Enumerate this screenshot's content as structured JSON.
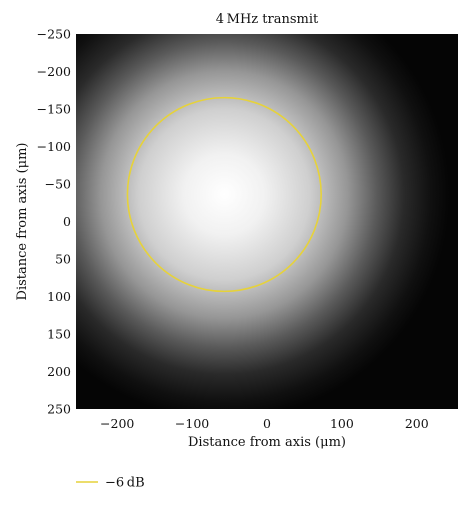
{
  "chart_data": {
    "type": "heatmap",
    "title": "4 MHz transmit",
    "xlabel": "Distance from axis (μm)",
    "ylabel": "Distance from axis (μm)",
    "xlim": [
      -255,
      255
    ],
    "ylim": [
      -250,
      250
    ],
    "y_inverted": true,
    "xticks": [
      -200,
      -100,
      0,
      100,
      200
    ],
    "yticks": [
      -250,
      -200,
      -150,
      -100,
      -50,
      0,
      50,
      100,
      150,
      200,
      250
    ],
    "xtick_labels": [
      "−200",
      "−100",
      "0",
      "100",
      "200"
    ],
    "ytick_labels": [
      "−250",
      "−200",
      "−150",
      "−100",
      "−50",
      "0",
      "50",
      "100",
      "150",
      "200",
      "250"
    ],
    "colormap": "grayscale",
    "beam_center": {
      "x": -57,
      "y": -36
    },
    "contour": {
      "name": "−6 dB",
      "shape": "circle",
      "center_x": -57,
      "center_y": -36,
      "radius": 172,
      "color": "#e6d23a"
    },
    "legend": {
      "placement": "bottom-left",
      "entries": [
        {
          "label": "−6 dB",
          "color": "#e6d23a"
        }
      ]
    },
    "grid": false
  }
}
